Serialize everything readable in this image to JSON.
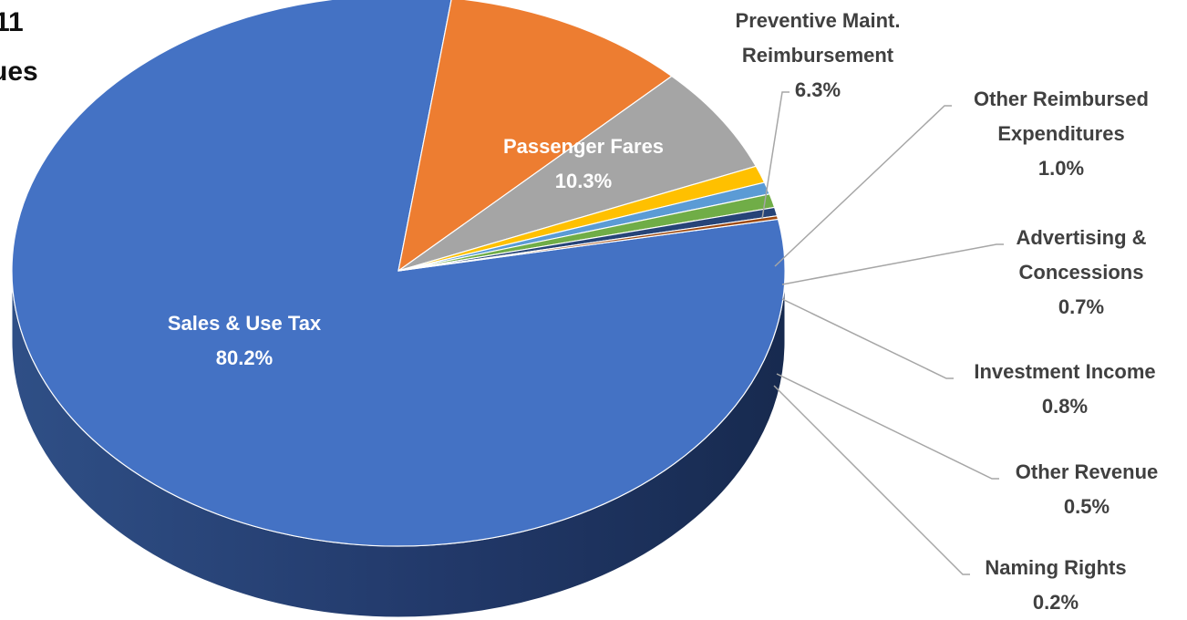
{
  "title_fragments": [
    "11",
    "ues"
  ],
  "chart_data": {
    "type": "pie",
    "style": "3d",
    "title": "",
    "slices": [
      {
        "label": "Sales & Use Tax",
        "value": 80.2,
        "display": "80.2%",
        "color": "#4472C4",
        "label_position": "inside"
      },
      {
        "label": "Passenger Fares",
        "value": 10.3,
        "display": "10.3%",
        "color": "#ED7D31",
        "label_position": "inside"
      },
      {
        "label_lines": [
          "Preventive Maint.",
          "Reimbursement"
        ],
        "value": 6.3,
        "display": "6.3%",
        "color": "#A5A5A5",
        "label_position": "outside"
      },
      {
        "label_lines": [
          "Other Reimbursed",
          "Expenditures"
        ],
        "value": 1.0,
        "display": "1.0%",
        "color": "#FFC000",
        "label_position": "outside"
      },
      {
        "label_lines": [
          "Advertising &",
          "Concessions"
        ],
        "value": 0.7,
        "display": "0.7%",
        "color": "#5B9BD5",
        "label_position": "outside"
      },
      {
        "label_lines": [
          "Investment Income"
        ],
        "value": 0.8,
        "display": "0.8%",
        "color": "#70AD47",
        "label_position": "outside"
      },
      {
        "label_lines": [
          "Other Revenue"
        ],
        "value": 0.5,
        "display": "0.5%",
        "color": "#264478",
        "label_position": "outside"
      },
      {
        "label_lines": [
          "Naming Rights"
        ],
        "value": 0.2,
        "display": "0.2%",
        "color": "#9E480E",
        "label_position": "outside"
      }
    ],
    "leader_line_color": "#A6A6A6",
    "legend": "none"
  }
}
